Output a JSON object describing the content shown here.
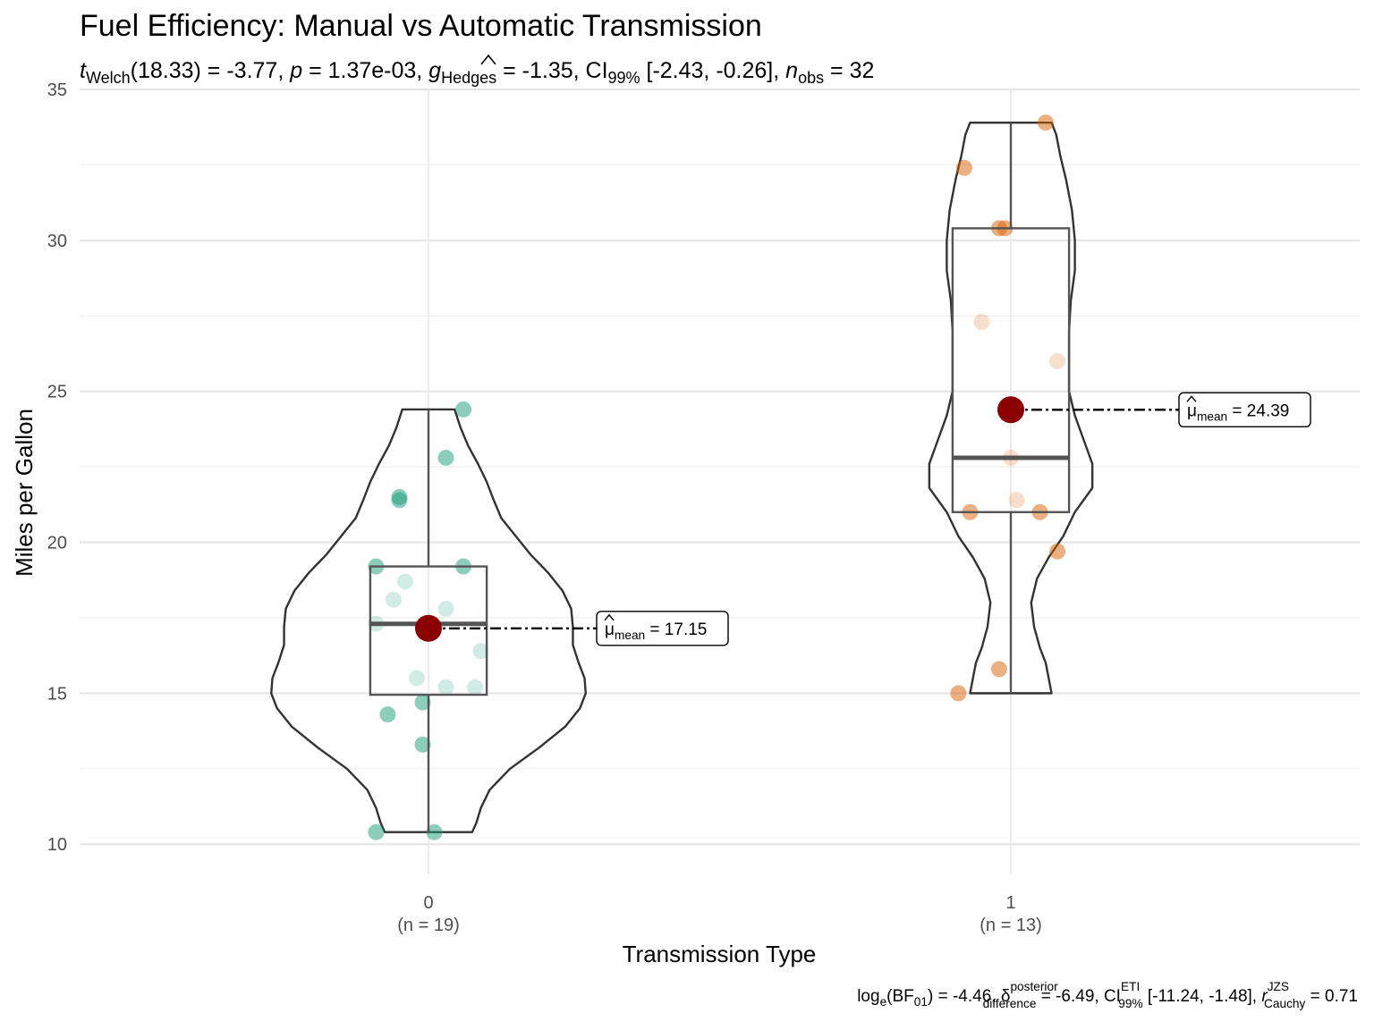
{
  "chart_data": {
    "type": "violin-box-scatter",
    "title": "Fuel Efficiency: Manual vs Automatic Transmission",
    "subtitle": {
      "t_label": "t",
      "t_sub": "Welch",
      "t_val": "(18.33) = -3.77, ",
      "p_label": "p",
      "p_val": " = 1.37e-03, ",
      "g_label": "g",
      "g_sub": "Hedges",
      "g_val": " = -1.35, CI",
      "ci_sub": "99%",
      "ci_val": " [-2.43, -0.26], ",
      "n_label": "n",
      "n_sub": "obs",
      "n_val": " = 32"
    },
    "xlabel": "Transmission Type",
    "ylabel": "Miles per Gallon",
    "ylim": [
      9.0,
      35.0
    ],
    "yticks": [
      10,
      15,
      20,
      25,
      30,
      35
    ],
    "grid": true,
    "caption": {
      "log_a": "log",
      "log_sub": "e",
      "bf_a": "(BF",
      "bf_sub": "01",
      "bf_b": ") = -4.46, ",
      "delta": "δ",
      "delta_sup": "posterior",
      "delta_sub": "difference",
      "delta_val": " = -6.49, CI",
      "ci_sup": "ETI",
      "ci_sub": "99%",
      "ci_val": " [-11.24, -1.48], ",
      "r": "r",
      "r_sup": "JZS",
      "r_sub": "Cauchy",
      "r_val": " = 0.71"
    },
    "groups": [
      {
        "category": "0",
        "n_label": "(n = 19)",
        "color": "#1b9e77",
        "mean": 17.15,
        "mean_label": "= 17.15",
        "box": {
          "q1": 14.95,
          "median": 17.3,
          "q3": 19.2,
          "lower": 10.4,
          "upper": 24.4
        },
        "points": [
          [
            -0.09,
            10.4
          ],
          [
            0.01,
            10.4
          ],
          [
            -0.07,
            14.3
          ],
          [
            -0.01,
            13.3
          ],
          [
            -0.01,
            14.7
          ],
          [
            -0.02,
            15.5
          ],
          [
            0.03,
            15.2
          ],
          [
            0.08,
            15.2
          ],
          [
            0.09,
            16.4
          ],
          [
            -0.09,
            17.3
          ],
          [
            0.03,
            17.8
          ],
          [
            -0.06,
            18.1
          ],
          [
            -0.04,
            18.7
          ],
          [
            -0.09,
            19.2
          ],
          [
            0.06,
            19.2
          ],
          [
            -0.05,
            21.4
          ],
          [
            -0.05,
            21.5
          ],
          [
            0.03,
            22.8
          ],
          [
            0.06,
            24.4
          ]
        ],
        "violin": [
          [
            10.4,
            0.075
          ],
          [
            10.7,
            0.082
          ],
          [
            11.2,
            0.09
          ],
          [
            11.8,
            0.105
          ],
          [
            12.5,
            0.14
          ],
          [
            13.2,
            0.19
          ],
          [
            13.9,
            0.235
          ],
          [
            14.5,
            0.26
          ],
          [
            15.0,
            0.27
          ],
          [
            15.5,
            0.268
          ],
          [
            16.0,
            0.258
          ],
          [
            16.6,
            0.248
          ],
          [
            17.2,
            0.248
          ],
          [
            17.8,
            0.245
          ],
          [
            18.4,
            0.23
          ],
          [
            19.0,
            0.205
          ],
          [
            19.6,
            0.175
          ],
          [
            20.2,
            0.15
          ],
          [
            20.8,
            0.125
          ],
          [
            21.4,
            0.112
          ],
          [
            22.0,
            0.1
          ],
          [
            22.6,
            0.085
          ],
          [
            23.2,
            0.068
          ],
          [
            23.8,
            0.055
          ],
          [
            24.4,
            0.045
          ]
        ]
      },
      {
        "category": "1",
        "n_label": "(n = 13)",
        "color": "#d95f02",
        "mean": 24.39,
        "mean_label": "= 24.39",
        "box": {
          "q1": 21.0,
          "median": 22.8,
          "q3": 30.4,
          "lower": 15.0,
          "upper": 33.9
        },
        "points": [
          [
            -0.09,
            15.0
          ],
          [
            -0.02,
            15.8
          ],
          [
            0.08,
            19.7
          ],
          [
            -0.07,
            21.0
          ],
          [
            0.05,
            21.0
          ],
          [
            0.01,
            21.4
          ],
          [
            0.0,
            22.8
          ],
          [
            0.08,
            26.0
          ],
          [
            -0.05,
            27.3
          ],
          [
            -0.01,
            30.4
          ],
          [
            -0.02,
            30.4
          ],
          [
            -0.08,
            32.4
          ],
          [
            0.06,
            33.9
          ]
        ],
        "violin": [
          [
            15.0,
            0.07
          ],
          [
            15.5,
            0.065
          ],
          [
            16.0,
            0.06
          ],
          [
            16.5,
            0.05
          ],
          [
            17.2,
            0.04
          ],
          [
            18.0,
            0.035
          ],
          [
            18.8,
            0.045
          ],
          [
            19.5,
            0.065
          ],
          [
            20.2,
            0.09
          ],
          [
            21.0,
            0.11
          ],
          [
            21.8,
            0.14
          ],
          [
            22.6,
            0.14
          ],
          [
            23.4,
            0.125
          ],
          [
            24.2,
            0.11
          ],
          [
            25.0,
            0.1
          ],
          [
            26.0,
            0.1
          ],
          [
            27.0,
            0.1
          ],
          [
            28.0,
            0.103
          ],
          [
            29.0,
            0.11
          ],
          [
            30.0,
            0.11
          ],
          [
            31.0,
            0.105
          ],
          [
            32.0,
            0.095
          ],
          [
            32.8,
            0.085
          ],
          [
            33.5,
            0.078
          ],
          [
            33.9,
            0.07
          ]
        ]
      }
    ],
    "mean_symbol": "μ",
    "mean_sub": "mean",
    "mean_color": "#8b0000"
  }
}
